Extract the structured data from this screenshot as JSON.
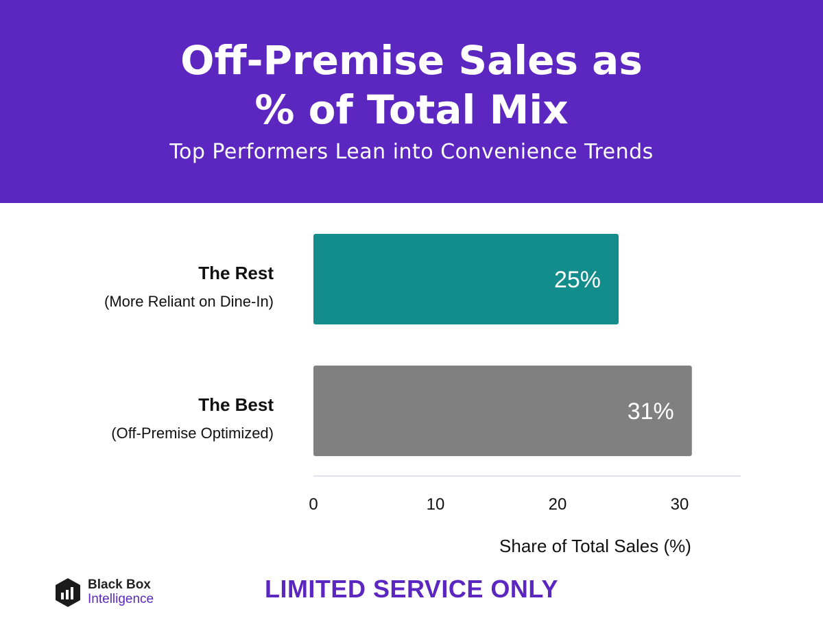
{
  "header": {
    "title_line1": "Off-Premise Sales as",
    "title_line2": "% of Total Mix",
    "subtitle": "Top Performers Lean into Convenience Trends"
  },
  "chart_data": {
    "type": "bar",
    "orientation": "horizontal",
    "categories": [
      {
        "name": "The Rest",
        "sublabel": "(More Reliant on Dine-In)"
      },
      {
        "name": "The Best",
        "sublabel": "(Off-Premise Optimized)"
      }
    ],
    "values": [
      25,
      31
    ],
    "data_labels": [
      "25%",
      "31%"
    ],
    "colors": [
      "#138d8c",
      "#808080"
    ],
    "xlabel": "Share of Total Sales (%)",
    "xticks": [
      0,
      10,
      20,
      30
    ],
    "xlim": [
      0,
      35
    ],
    "grid": false
  },
  "footer": {
    "note": "LIMITED SERVICE ONLY",
    "logo_line1": "Black Box",
    "logo_line2": "Intelligence",
    "logo_icon": "black-box-logo-icon"
  },
  "colors": {
    "brand_purple": "#5b27c0",
    "teal": "#138d8c",
    "gray": "#808080"
  }
}
